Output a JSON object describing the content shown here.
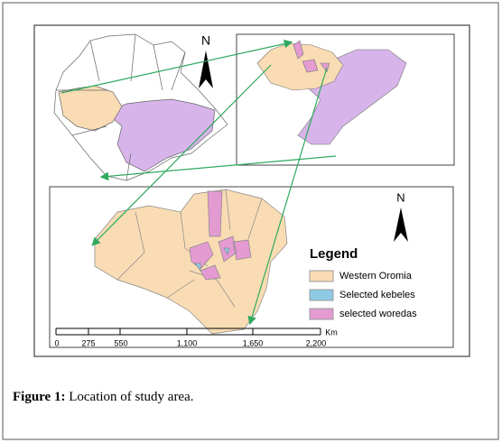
{
  "inset_top": {
    "north": "N"
  },
  "main_map": {
    "north": "N"
  },
  "legend": {
    "title": "Legend",
    "items": [
      "Western Oromia",
      "Selected kebeles",
      "selected woredas"
    ]
  },
  "scale_bar": {
    "labels": [
      "0",
      "275",
      "550",
      "1,100",
      "1,650",
      "2,200"
    ],
    "unit": "Km"
  },
  "caption": {
    "label": "Figure 1:",
    "text": "Location of study area."
  }
}
